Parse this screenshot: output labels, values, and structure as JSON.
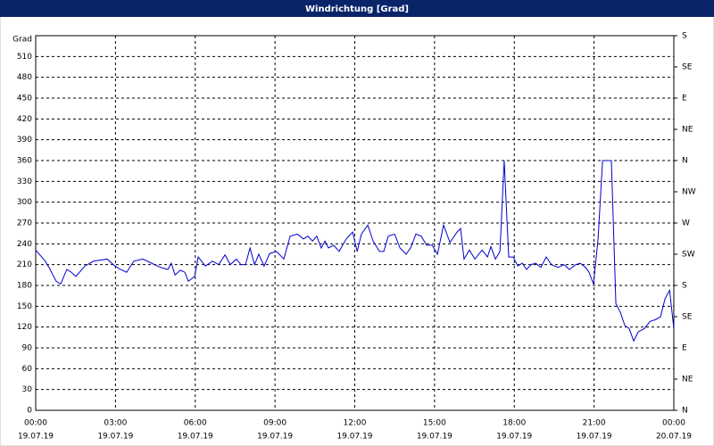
{
  "window_title": "Windrichtung [Grad]",
  "chart_data": {
    "type": "line",
    "y_label": "Grad",
    "x": [
      0,
      0.34,
      0.5,
      0.77,
      0.94,
      1.17,
      1.34,
      1.51,
      1.85,
      2.18,
      2.69,
      2.95,
      3.19,
      3.42,
      3.69,
      4.03,
      4.36,
      4.7,
      4.97,
      5.1,
      5.24,
      5.44,
      5.61,
      5.74,
      5.98,
      6.11,
      6.38,
      6.65,
      6.88,
      7.12,
      7.32,
      7.55,
      7.72,
      7.89,
      8.06,
      8.23,
      8.39,
      8.59,
      8.8,
      9.06,
      9.33,
      9.57,
      9.84,
      10.07,
      10.24,
      10.41,
      10.57,
      10.74,
      10.88,
      11.01,
      11.21,
      11.41,
      11.68,
      11.92,
      12.09,
      12.25,
      12.49,
      12.69,
      12.93,
      13.09,
      13.26,
      13.5,
      13.7,
      13.93,
      14.1,
      14.3,
      14.5,
      14.7,
      14.91,
      15.11,
      15.34,
      15.58,
      15.85,
      15.98,
      16.11,
      16.31,
      16.52,
      16.79,
      16.99,
      17.12,
      17.29,
      17.46,
      17.62,
      17.79,
      17.96,
      18.13,
      18.3,
      18.46,
      18.63,
      18.8,
      19.0,
      19.2,
      19.4,
      19.64,
      19.87,
      20.07,
      20.31,
      20.48,
      20.68,
      20.81,
      20.98,
      21.15,
      21.32,
      21.65,
      21.82,
      21.99,
      22.16,
      22.32,
      22.49,
      22.66,
      22.9,
      23.1,
      23.33,
      23.5,
      23.67,
      23.84,
      24.0
    ],
    "series": [
      {
        "name": "Windrichtung",
        "color": "#0000cc",
        "values": [
          231,
          216,
          206,
          186,
          182,
          203,
          199,
          193,
          208,
          215,
          218,
          209,
          203,
          199,
          215,
          218,
          212,
          206,
          203,
          212,
          195,
          202,
          199,
          186,
          193,
          221,
          208,
          215,
          210,
          224,
          210,
          218,
          210,
          210,
          234,
          210,
          225,
          208,
          226,
          229,
          218,
          251,
          254,
          247,
          251,
          244,
          251,
          234,
          244,
          234,
          238,
          229,
          247,
          257,
          229,
          254,
          267,
          244,
          229,
          229,
          251,
          254,
          234,
          225,
          234,
          254,
          251,
          238,
          238,
          225,
          267,
          242,
          257,
          262,
          218,
          231,
          218,
          231,
          221,
          236,
          218,
          229,
          360,
          221,
          221,
          208,
          212,
          203,
          210,
          212,
          206,
          221,
          210,
          206,
          210,
          203,
          210,
          212,
          206,
          199,
          182,
          247,
          360,
          360,
          154,
          141,
          122,
          118,
          100,
          113,
          118,
          128,
          131,
          135,
          161,
          173,
          118
        ]
      }
    ],
    "xlim": [
      0,
      24
    ],
    "xticks": [
      {
        "value": 0,
        "label": "00:00"
      },
      {
        "value": 3,
        "label": "03:00"
      },
      {
        "value": 6,
        "label": "06:00"
      },
      {
        "value": 9,
        "label": "09:00"
      },
      {
        "value": 12,
        "label": "12:00"
      },
      {
        "value": 15,
        "label": "15:00"
      },
      {
        "value": 18,
        "label": "18:00"
      },
      {
        "value": 21,
        "label": "21:00"
      },
      {
        "value": 24,
        "label": "00:00"
      }
    ],
    "xtick_dates": [
      "19.07.19",
      "19.07.19",
      "19.07.19",
      "19.07.19",
      "19.07.19",
      "19.07.19",
      "19.07.19",
      "19.07.19",
      "20.07.19"
    ],
    "ylim": [
      0,
      540
    ],
    "yticks": [
      0,
      30,
      60,
      90,
      120,
      150,
      180,
      210,
      240,
      270,
      300,
      330,
      360,
      390,
      420,
      450,
      480,
      510
    ],
    "y2lim": [
      0,
      540
    ],
    "y2ticks": [
      {
        "value": 0,
        "label": "N"
      },
      {
        "value": 45,
        "label": "NE"
      },
      {
        "value": 90,
        "label": "E"
      },
      {
        "value": 135,
        "label": "SE"
      },
      {
        "value": 180,
        "label": "S"
      },
      {
        "value": 225,
        "label": "SW"
      },
      {
        "value": 270,
        "label": "W"
      },
      {
        "value": 315,
        "label": "NW"
      },
      {
        "value": 360,
        "label": "N"
      },
      {
        "value": 405,
        "label": "NE"
      },
      {
        "value": 450,
        "label": "E"
      },
      {
        "value": 495,
        "label": "SE"
      },
      {
        "value": 540,
        "label": "S"
      }
    ],
    "grid": true
  }
}
